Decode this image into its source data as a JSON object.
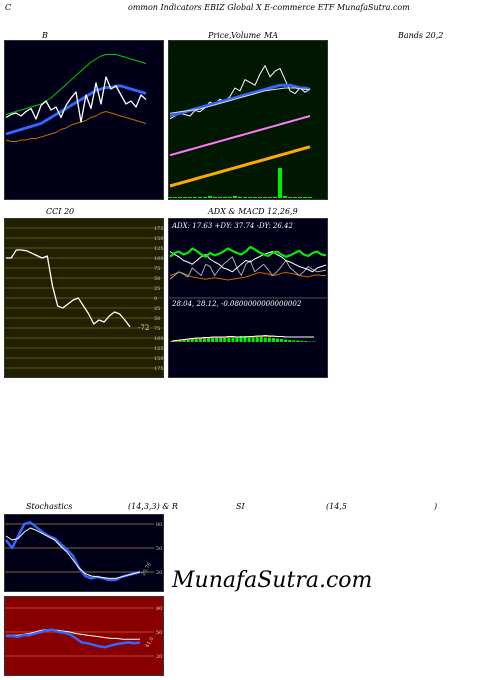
{
  "header": {
    "left": "C",
    "title": "ommon Indicators EBIZ Global X E-commerce ETF MunafaSutra.com"
  },
  "labels": {
    "b": "B",
    "price": "Price,",
    "volume": "Volume",
    "ma": "MA",
    "bands": "Bands 20,2",
    "cci": "CCI 20",
    "adx_macd": "ADX  & MACD 12,26,9",
    "stochastics": "Stochastics",
    "stoch_params": "(14,3,3) & R",
    "si": "SI",
    "rsi_params": "(14,5",
    "rsi_close": ")"
  },
  "colors": {
    "dark_bg": "#000018",
    "green_bg": "#001800",
    "olive_bg": "#202000",
    "red_bg": "#880000",
    "blue_line": "#3366ff",
    "green_line": "#00cc00",
    "orange_line": "#cc6600",
    "bright_green": "#00ee00",
    "white_line": "#ffffff"
  },
  "chart_data": [
    {
      "type": "line",
      "panel": "bollinger",
      "series": [
        {
          "values": [
            55,
            57,
            58,
            56,
            59,
            61,
            54,
            63,
            66,
            60,
            62,
            55,
            63,
            68,
            72,
            52,
            70,
            61,
            78,
            64,
            82,
            74,
            76,
            70,
            64,
            66,
            62,
            70,
            67
          ]
        },
        {
          "values": [
            44,
            45,
            46,
            47,
            48,
            49,
            50,
            51,
            53,
            55,
            57,
            59,
            61,
            63,
            65,
            67,
            69,
            71,
            73,
            74,
            75,
            75,
            76,
            76,
            75,
            74,
            73,
            72,
            71
          ]
        },
        {
          "values": [
            57,
            58,
            59,
            60,
            61,
            62,
            63,
            64,
            66,
            68,
            71,
            74,
            77,
            80,
            83,
            86,
            89,
            92,
            94,
            96,
            97,
            97,
            97,
            96,
            95,
            94,
            93,
            92,
            91
          ]
        },
        {
          "values": [
            40,
            39,
            39,
            40,
            40,
            41,
            41,
            42,
            43,
            44,
            45,
            47,
            48,
            50,
            51,
            52,
            53,
            55,
            56,
            58,
            59,
            58,
            57,
            56,
            55,
            54,
            53,
            52,
            51
          ]
        }
      ]
    },
    {
      "type": "line",
      "panel": "price-ma",
      "series": [
        {
          "values": [
            58,
            60,
            62,
            61,
            60,
            64,
            63,
            66,
            70,
            68,
            72,
            70,
            74,
            80,
            78,
            86,
            84,
            82,
            90,
            96,
            88,
            92,
            94,
            86,
            78,
            76,
            80,
            77,
            79
          ]
        },
        {
          "values": [
            60,
            61,
            62,
            63,
            64,
            65,
            66,
            67,
            68,
            69,
            70,
            71,
            72,
            73,
            74,
            75,
            76,
            77,
            78,
            79,
            80,
            81,
            82,
            82,
            82,
            81,
            80,
            80,
            79
          ]
        },
        {
          "values": [
            62,
            62.5,
            63,
            63.5,
            64,
            64.5,
            65,
            66,
            67,
            68,
            69,
            70,
            71,
            72,
            73,
            74,
            75,
            76,
            77,
            78,
            78.5,
            79,
            79.5,
            80,
            80,
            80,
            79.5,
            79,
            79
          ]
        },
        {
          "values": [
            32,
            33,
            34,
            35,
            36,
            37,
            38,
            39,
            40,
            41,
            42,
            43,
            44,
            45,
            46,
            47,
            48,
            49,
            50,
            51,
            52,
            53,
            54,
            55,
            56,
            57,
            58,
            59,
            60
          ]
        },
        {
          "values": [
            10,
            11,
            12,
            13,
            14,
            15,
            16,
            17,
            18,
            19,
            20,
            21,
            22,
            23,
            24,
            25,
            26,
            27,
            28,
            29,
            30,
            31,
            32,
            33,
            34,
            35,
            36,
            37,
            38
          ]
        }
      ],
      "volume": [
        1,
        1,
        1,
        1,
        1,
        1,
        1,
        1,
        2,
        1,
        1,
        1,
        1,
        2,
        1,
        1,
        1,
        1,
        1,
        1,
        1,
        1,
        30,
        2,
        1,
        1,
        1,
        1,
        1
      ]
    },
    {
      "type": "line",
      "panel": "cci",
      "title": "CCI 20",
      "ylim": [
        -175,
        175
      ],
      "ticks": [
        175,
        150,
        125,
        100,
        75,
        50,
        25,
        0,
        -25,
        -50,
        -75,
        -100,
        -125,
        -150,
        -175
      ],
      "tick_labels": [
        "175",
        "150",
        "125",
        "100",
        "75",
        "50",
        "25",
        "0",
        "25",
        "50",
        "75",
        "100",
        "125",
        "150",
        "175"
      ],
      "values": [
        100,
        100,
        120,
        120,
        118,
        112,
        106,
        100,
        105,
        30,
        -20,
        -25,
        -15,
        -5,
        0,
        -20,
        -40,
        -65,
        -55,
        -60,
        -45,
        -35,
        -40,
        -55,
        -72
      ],
      "last_label": "-72"
    },
    {
      "type": "line",
      "panel": "adx",
      "title": "ADX: 17.63  +DY: 37.74  -DY: 26.42",
      "series": [
        {
          "values": [
            30,
            32,
            35,
            33,
            30,
            28,
            27,
            26,
            25,
            26,
            27,
            26,
            25,
            24,
            25,
            26,
            27,
            28,
            30,
            32,
            34,
            33,
            32,
            30,
            31,
            33,
            34,
            33,
            32,
            30,
            29,
            28,
            30,
            31,
            30,
            30
          ]
        },
        {
          "values": [
            55,
            60,
            62,
            58,
            60,
            66,
            63,
            58,
            55,
            60,
            57,
            59,
            62,
            66,
            63,
            60,
            58,
            62,
            68,
            65,
            61,
            58,
            56,
            60,
            62,
            58,
            55,
            57,
            60,
            63,
            58,
            56,
            60,
            62,
            58,
            57
          ]
        },
        {
          "values": [
            25,
            30,
            35,
            32,
            28,
            40,
            35,
            30,
            45,
            42,
            30,
            38,
            45,
            50,
            55,
            40,
            30,
            45,
            50,
            35,
            40,
            45,
            38,
            30,
            35,
            42,
            50,
            40,
            35,
            30,
            35,
            42,
            38,
            35,
            36,
            37
          ]
        },
        {
          "values": [
            62,
            58,
            55,
            50,
            48,
            45,
            50,
            55,
            58,
            52,
            48,
            45,
            40,
            38,
            35,
            40,
            45,
            50,
            48,
            52,
            55,
            58,
            60,
            62,
            58,
            55,
            50,
            48,
            45,
            42,
            40,
            38,
            35,
            40,
            42,
            44
          ]
        }
      ]
    },
    {
      "type": "bar",
      "panel": "macd",
      "title": "28.04,  28.12,  -0.0800000000000002",
      "histogram": [
        2,
        3,
        3,
        4,
        4,
        5,
        5,
        6,
        7,
        8,
        8,
        9,
        9,
        10,
        10,
        11,
        11,
        12,
        12,
        11,
        11,
        10,
        10,
        9,
        9,
        8,
        7,
        6,
        5,
        4,
        3,
        3,
        2,
        2,
        1,
        1
      ],
      "macd": [
        20,
        21,
        22,
        23,
        24,
        25,
        26,
        26,
        27,
        27,
        28,
        28,
        28,
        28,
        29,
        29,
        28,
        28,
        28,
        29,
        29,
        30,
        30,
        31,
        30,
        30,
        29,
        29,
        28,
        28,
        28,
        28,
        28,
        28,
        28,
        28
      ],
      "signal": [
        19,
        20,
        21,
        22,
        23,
        24,
        24,
        25,
        25,
        26,
        26,
        27,
        27,
        27,
        27,
        28,
        28,
        28,
        28,
        28,
        28,
        29,
        29,
        29,
        29,
        29,
        29,
        29,
        28,
        28,
        28,
        28,
        28,
        28,
        28,
        28
      ]
    },
    {
      "type": "line",
      "panel": "stochastics",
      "ticks": [
        80,
        50,
        20
      ],
      "tick_labels": [
        "80",
        "50",
        "20"
      ],
      "last_label": "20.76",
      "series": [
        {
          "values": [
            60,
            50,
            65,
            80,
            82,
            76,
            70,
            65,
            62,
            55,
            48,
            40,
            25,
            15,
            12,
            14,
            12,
            10,
            10,
            14,
            16,
            18,
            20
          ]
        },
        {
          "values": [
            65,
            60,
            62,
            70,
            75,
            72,
            68,
            64,
            60,
            52,
            45,
            35,
            25,
            18,
            15,
            14,
            13,
            12,
            12,
            14,
            16,
            18,
            20
          ]
        }
      ]
    },
    {
      "type": "line",
      "panel": "rsi",
      "ticks": [
        80,
        50,
        20
      ],
      "tick_labels": [
        "80",
        "50",
        "20"
      ],
      "last_label": "41.0",
      "series": [
        {
          "values": [
            45,
            45,
            44,
            46,
            46,
            48,
            50,
            52,
            53,
            50,
            49,
            47,
            42,
            37,
            36,
            34,
            32,
            31,
            33,
            35,
            36,
            37,
            36,
            37
          ]
        },
        {
          "values": [
            46,
            46,
            46,
            47,
            48,
            50,
            52,
            53,
            53,
            52,
            51,
            50,
            48,
            47,
            46,
            45,
            44,
            43,
            42,
            42,
            41,
            41,
            41,
            41
          ]
        }
      ]
    }
  ],
  "watermark": "MunafaSutra.com"
}
